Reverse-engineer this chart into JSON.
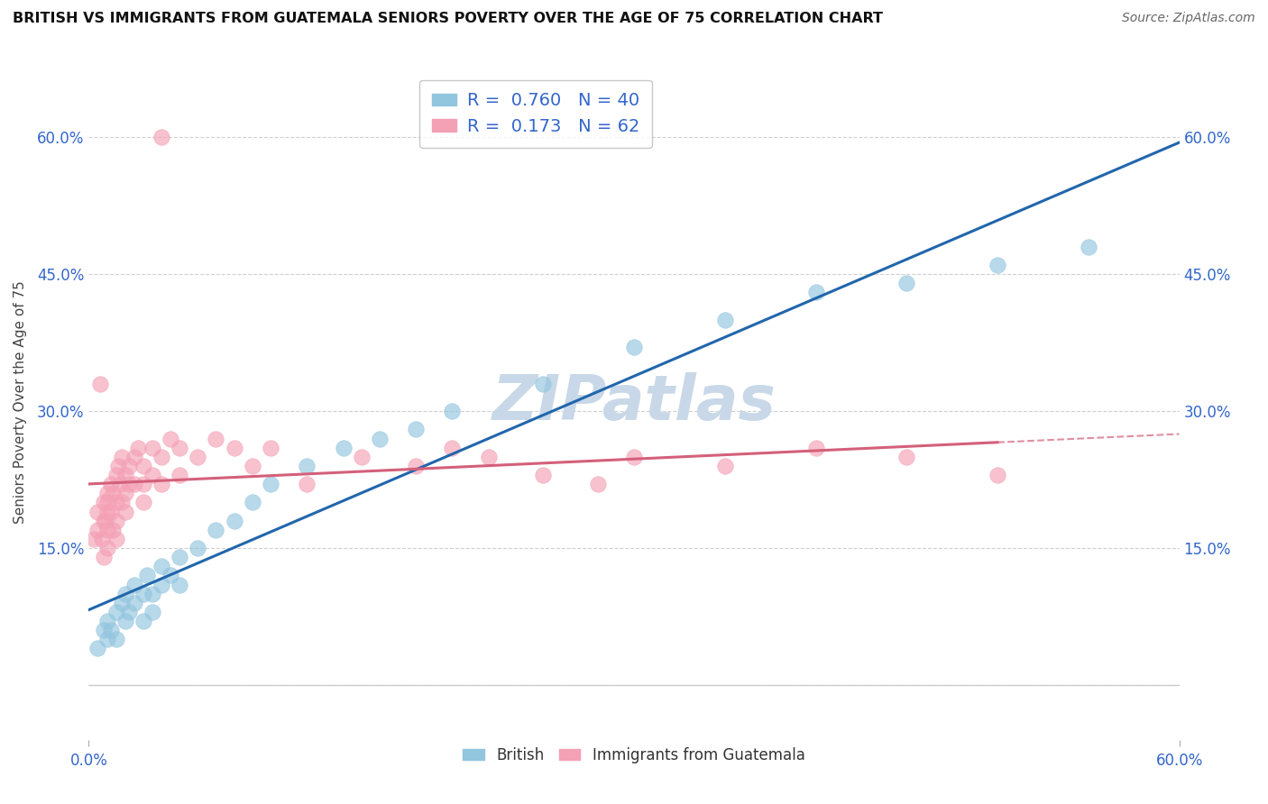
{
  "title": "BRITISH VS IMMIGRANTS FROM GUATEMALA SENIORS POVERTY OVER THE AGE OF 75 CORRELATION CHART",
  "source": "Source: ZipAtlas.com",
  "ylabel": "Seniors Poverty Over the Age of 75",
  "xlim": [
    0.0,
    0.6
  ],
  "ylim": [
    -0.06,
    0.68
  ],
  "british_R": 0.76,
  "british_N": 40,
  "guatemala_R": 0.173,
  "guatemala_N": 62,
  "british_color": "#92c5de",
  "guatemala_color": "#f4a0b5",
  "british_line_color": "#2166ac",
  "guatemala_line_color": "#d4607a",
  "watermark": "ZIPatlas",
  "watermark_color": "#c8d8e8",
  "legend_label1": "R =  0.760   N = 40",
  "legend_label2": "R =  0.173   N = 62",
  "ytick_vals": [
    0.0,
    0.15,
    0.3,
    0.45,
    0.6
  ],
  "ytick_labels": [
    "",
    "15.0%",
    "30.0%",
    "45.0%",
    "60.0%"
  ],
  "br_x": [
    0.005,
    0.008,
    0.01,
    0.01,
    0.012,
    0.015,
    0.015,
    0.018,
    0.02,
    0.02,
    0.022,
    0.025,
    0.025,
    0.03,
    0.03,
    0.032,
    0.035,
    0.035,
    0.04,
    0.04,
    0.045,
    0.05,
    0.05,
    0.06,
    0.07,
    0.08,
    0.09,
    0.1,
    0.12,
    0.14,
    0.16,
    0.18,
    0.2,
    0.25,
    0.3,
    0.35,
    0.4,
    0.45,
    0.5,
    0.55
  ],
  "br_y": [
    0.04,
    0.06,
    0.05,
    0.07,
    0.06,
    0.08,
    0.05,
    0.09,
    0.07,
    0.1,
    0.08,
    0.09,
    0.11,
    0.1,
    0.07,
    0.12,
    0.1,
    0.08,
    0.11,
    0.13,
    0.12,
    0.14,
    0.11,
    0.15,
    0.17,
    0.18,
    0.2,
    0.22,
    0.24,
    0.26,
    0.27,
    0.28,
    0.3,
    0.33,
    0.37,
    0.4,
    0.43,
    0.44,
    0.46,
    0.48
  ],
  "gt_x": [
    0.003,
    0.005,
    0.005,
    0.007,
    0.008,
    0.008,
    0.008,
    0.009,
    0.01,
    0.01,
    0.01,
    0.01,
    0.01,
    0.012,
    0.012,
    0.013,
    0.013,
    0.015,
    0.015,
    0.015,
    0.015,
    0.016,
    0.017,
    0.018,
    0.018,
    0.02,
    0.02,
    0.02,
    0.022,
    0.022,
    0.025,
    0.025,
    0.027,
    0.03,
    0.03,
    0.03,
    0.035,
    0.035,
    0.04,
    0.04,
    0.045,
    0.05,
    0.05,
    0.06,
    0.07,
    0.08,
    0.09,
    0.1,
    0.12,
    0.15,
    0.18,
    0.2,
    0.22,
    0.25,
    0.28,
    0.3,
    0.35,
    0.4,
    0.45,
    0.5,
    0.04,
    0.006
  ],
  "gt_y": [
    0.16,
    0.17,
    0.19,
    0.16,
    0.18,
    0.2,
    0.14,
    0.18,
    0.19,
    0.21,
    0.17,
    0.15,
    0.2,
    0.22,
    0.19,
    0.21,
    0.17,
    0.23,
    0.2,
    0.18,
    0.16,
    0.24,
    0.22,
    0.25,
    0.2,
    0.23,
    0.21,
    0.19,
    0.24,
    0.22,
    0.25,
    0.22,
    0.26,
    0.24,
    0.22,
    0.2,
    0.26,
    0.23,
    0.25,
    0.22,
    0.27,
    0.26,
    0.23,
    0.25,
    0.27,
    0.26,
    0.24,
    0.26,
    0.22,
    0.25,
    0.24,
    0.26,
    0.25,
    0.23,
    0.22,
    0.25,
    0.24,
    0.26,
    0.25,
    0.23,
    0.6,
    0.33
  ]
}
